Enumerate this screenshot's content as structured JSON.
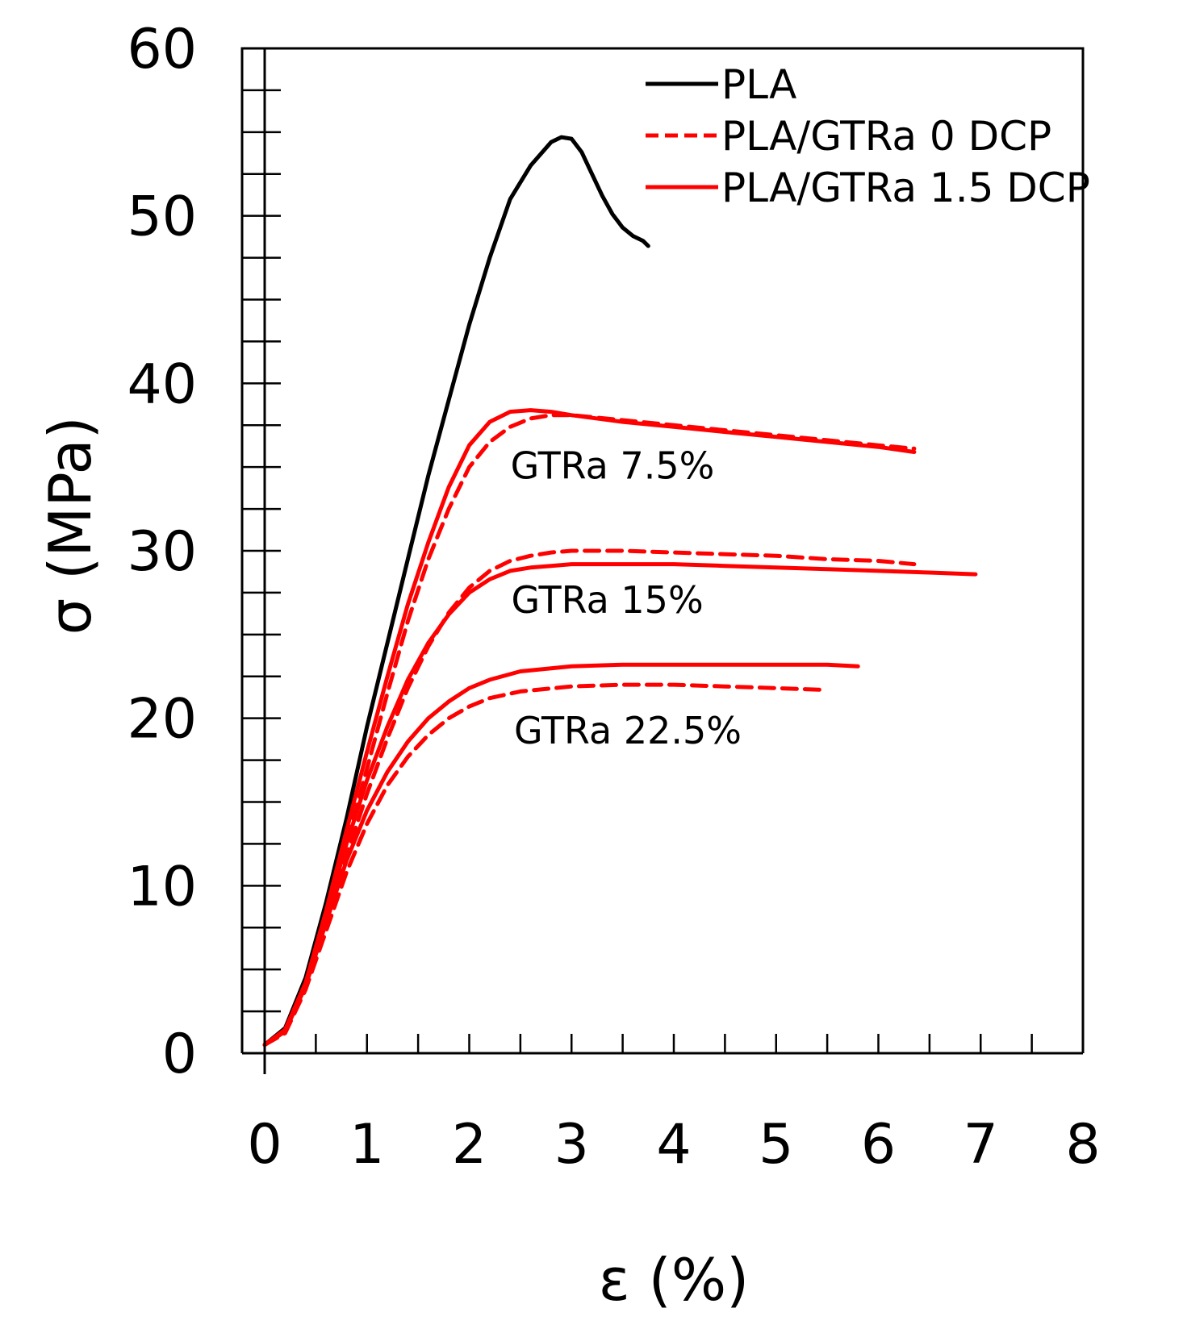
{
  "chart_data": {
    "type": "line",
    "title": "",
    "xlabel": "ε (%)",
    "ylabel": "σ (MPa)",
    "xlim": [
      0,
      8
    ],
    "ylim": [
      0,
      60
    ],
    "x_ticks": [
      0,
      1,
      2,
      3,
      4,
      5,
      6,
      7,
      8
    ],
    "y_ticks": [
      0,
      10,
      20,
      30,
      40,
      50,
      60
    ],
    "x_minor_step": 0.5,
    "y_minor_step": 2.5,
    "legend_position": "top-right",
    "legend": [
      {
        "label": "PLA",
        "color": "#000000",
        "style": "solid"
      },
      {
        "label": "PLA/GTRa 0 DCP",
        "color": "#ff0000",
        "style": "dashed"
      },
      {
        "label": "PLA/GTRa 1.5 DCP",
        "color": "#ff0000",
        "style": "solid"
      }
    ],
    "annotations": [
      {
        "text": "GTRa 7.5%",
        "x": 3.4,
        "y": 34.3
      },
      {
        "text": "GTRa 15%",
        "x": 3.35,
        "y": 26.3
      },
      {
        "text": "GTRa 22.5%",
        "x": 3.55,
        "y": 18.5
      }
    ],
    "series": [
      {
        "name": "PLA",
        "color": "#000000",
        "style": "solid",
        "x": [
          0,
          0.2,
          0.4,
          0.6,
          0.8,
          1.0,
          1.2,
          1.4,
          1.6,
          1.8,
          2.0,
          2.2,
          2.4,
          2.6,
          2.8,
          2.9,
          3.0,
          3.1,
          3.2,
          3.3,
          3.4,
          3.5,
          3.6,
          3.7,
          3.75
        ],
        "y": [
          0.5,
          1.5,
          4.5,
          9.0,
          14.0,
          19.5,
          24.5,
          29.5,
          34.5,
          39.0,
          43.5,
          47.5,
          51.0,
          53.0,
          54.4,
          54.7,
          54.6,
          53.8,
          52.5,
          51.2,
          50.1,
          49.3,
          48.8,
          48.5,
          48.2
        ]
      },
      {
        "name": "PLA/GTRa 0 DCP — GTRa 7.5%",
        "color": "#ff0000",
        "style": "dashed",
        "x": [
          0,
          0.2,
          0.4,
          0.6,
          0.8,
          1.0,
          1.2,
          1.4,
          1.6,
          1.8,
          2.0,
          2.2,
          2.4,
          2.6,
          2.8,
          3.0,
          3.5,
          4.0,
          4.5,
          5.0,
          5.5,
          6.0,
          6.35
        ],
        "y": [
          0.5,
          1.3,
          4.0,
          8.0,
          12.5,
          17.0,
          21.5,
          25.8,
          29.5,
          32.5,
          35.0,
          36.5,
          37.4,
          37.9,
          38.1,
          38.1,
          37.8,
          37.5,
          37.2,
          36.9,
          36.6,
          36.3,
          36.1
        ]
      },
      {
        "name": "PLA/GTRa 1.5 DCP — GTRa 7.5%",
        "color": "#ff0000",
        "style": "solid",
        "x": [
          0,
          0.2,
          0.4,
          0.6,
          0.8,
          1.0,
          1.2,
          1.4,
          1.6,
          1.8,
          2.0,
          2.2,
          2.4,
          2.6,
          2.8,
          3.0,
          3.5,
          4.0,
          4.5,
          5.0,
          5.5,
          6.0,
          6.35
        ],
        "y": [
          0.5,
          1.4,
          4.2,
          8.5,
          13.3,
          18.0,
          22.5,
          26.8,
          30.5,
          33.8,
          36.3,
          37.7,
          38.3,
          38.4,
          38.3,
          38.1,
          37.7,
          37.4,
          37.1,
          36.8,
          36.5,
          36.2,
          35.9
        ]
      },
      {
        "name": "PLA/GTRa 0 DCP — GTRa 15%",
        "color": "#ff0000",
        "style": "dashed",
        "x": [
          0,
          0.2,
          0.4,
          0.6,
          0.8,
          1.0,
          1.2,
          1.4,
          1.6,
          1.8,
          2.0,
          2.2,
          2.4,
          2.6,
          2.8,
          3.0,
          3.5,
          4.0,
          4.5,
          5.0,
          5.5,
          6.0,
          6.35
        ],
        "y": [
          0.5,
          1.3,
          4.0,
          7.8,
          11.8,
          15.5,
          18.8,
          21.8,
          24.3,
          26.3,
          27.8,
          28.8,
          29.4,
          29.7,
          29.9,
          30.0,
          30.0,
          29.9,
          29.8,
          29.7,
          29.5,
          29.4,
          29.2
        ]
      },
      {
        "name": "PLA/GTRa 1.5 DCP — GTRa 15%",
        "color": "#ff0000",
        "style": "solid",
        "x": [
          0,
          0.2,
          0.4,
          0.6,
          0.8,
          1.0,
          1.2,
          1.4,
          1.6,
          1.8,
          2.0,
          2.2,
          2.4,
          2.6,
          2.8,
          3.0,
          3.5,
          4.0,
          4.5,
          5.0,
          5.5,
          6.0,
          6.5,
          6.95
        ],
        "y": [
          0.5,
          1.4,
          4.2,
          8.3,
          12.5,
          16.3,
          19.5,
          22.3,
          24.5,
          26.2,
          27.5,
          28.3,
          28.8,
          29.0,
          29.1,
          29.2,
          29.2,
          29.2,
          29.1,
          29.0,
          28.9,
          28.8,
          28.7,
          28.6
        ]
      },
      {
        "name": "PLA/GTRa 0 DCP — GTRa 22.5%",
        "color": "#ff0000",
        "style": "dashed",
        "x": [
          0,
          0.2,
          0.4,
          0.6,
          0.8,
          1.0,
          1.2,
          1.4,
          1.6,
          1.8,
          2.0,
          2.2,
          2.5,
          3.0,
          3.5,
          4.0,
          4.5,
          5.0,
          5.45
        ],
        "y": [
          0.5,
          1.2,
          3.8,
          7.3,
          10.8,
          13.7,
          16.0,
          17.7,
          19.0,
          20.0,
          20.7,
          21.2,
          21.6,
          21.9,
          22.0,
          22.0,
          21.9,
          21.8,
          21.7
        ]
      },
      {
        "name": "PLA/GTRa 1.5 DCP — GTRa 22.5%",
        "color": "#ff0000",
        "style": "solid",
        "x": [
          0,
          0.2,
          0.4,
          0.6,
          0.8,
          1.0,
          1.2,
          1.4,
          1.6,
          1.8,
          2.0,
          2.2,
          2.5,
          3.0,
          3.5,
          4.0,
          4.5,
          5.0,
          5.5,
          5.8
        ],
        "y": [
          0.5,
          1.3,
          4.0,
          7.8,
          11.5,
          14.5,
          16.8,
          18.6,
          20.0,
          21.0,
          21.8,
          22.3,
          22.8,
          23.1,
          23.2,
          23.2,
          23.2,
          23.2,
          23.2,
          23.1
        ]
      }
    ]
  }
}
